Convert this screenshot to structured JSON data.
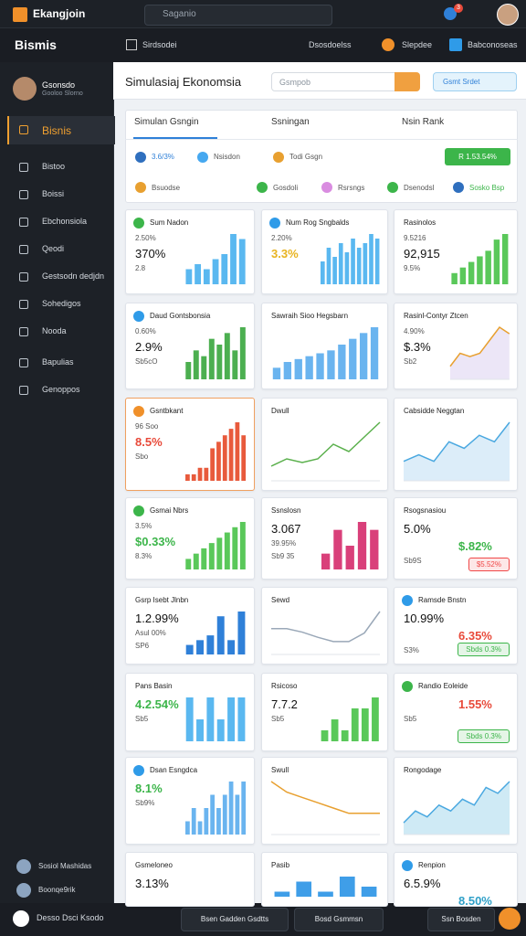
{
  "topbar": {
    "app_name": "Ekangjoin",
    "search": "Saganio",
    "notifications": "3"
  },
  "navbar": {
    "back": "Bismis",
    "items": [
      "Sirdsodei",
      "Dsosdoelss",
      "Slepdee",
      "Babconoseas"
    ]
  },
  "sidebar": {
    "profile": {
      "name": "Gsonsdo",
      "role": "Gooloo Slorno"
    },
    "items": [
      "Bisnis",
      "Bistoo",
      "Boissi",
      "Ebchonsiola",
      "Qeodi",
      "Gestsodn dedjdn",
      "Sohedigos",
      "Nooda",
      "Bapulias",
      "Genoppos"
    ],
    "footer": [
      "Sosiol Mashidas",
      "Boonqe9rik"
    ]
  },
  "header": {
    "title": "Simulasiaj Ekonomsia",
    "search": "Gsmpob",
    "button": "Gsmt Srdet"
  },
  "tabs": {
    "labels": [
      "Simulan Gsngin",
      "Ssningan",
      "Nsin Rank"
    ],
    "row1": [
      "3.6/3%",
      "Nsisdon",
      "Todi Gsgn"
    ],
    "action": "R 1.53.54%",
    "row2": [
      "Bsuodse",
      "Gosdoli",
      "Rsrsngs",
      "Dsenodsl",
      "Sosko Bsp"
    ]
  },
  "cards": [
    {
      "title": "Sum Nadon",
      "icon_color": "#3cb54a",
      "lines": [
        {
          "text": "2.50%",
          "style": "small"
        },
        {
          "text": "370%",
          "style": "big"
        },
        {
          "text": "2.8",
          "style": "small"
        }
      ],
      "chart": {
        "type": "bar",
        "color": "#5ab8f0",
        "values": [
          3,
          4,
          3,
          5,
          6,
          10,
          9
        ]
      }
    },
    {
      "title": "Num Rog Sngbalds",
      "icon_color": "#2f9be8",
      "lines": [
        {
          "text": "2.20%",
          "style": "small"
        },
        {
          "text": "3.3%",
          "style": "accent",
          "color": "#e8b320"
        }
      ],
      "chart": {
        "type": "bar",
        "color": "#5ab8f0",
        "values": [
          5,
          8,
          6,
          9,
          7,
          10,
          8,
          9,
          11,
          10
        ]
      }
    },
    {
      "title": "Rasinolos",
      "lines": [
        {
          "text": "9.5216",
          "style": "small"
        },
        {
          "text": "92,915",
          "style": "big"
        },
        {
          "text": "9.5%",
          "style": "small"
        }
      ],
      "chart": {
        "type": "bar",
        "color": "#5ac85a",
        "values": [
          2,
          3,
          4,
          5,
          6,
          8,
          9
        ]
      }
    },
    {
      "title": "Daud Gontsbonsia",
      "icon_color": "#2f9be8",
      "lines": [
        {
          "text": "0.60%",
          "style": "small"
        },
        {
          "text": "2.9%",
          "style": "big"
        },
        {
          "text": "Sb5cO",
          "style": "small"
        }
      ],
      "chart": {
        "type": "bar",
        "color": "#4caf50",
        "values": [
          3,
          5,
          4,
          7,
          6,
          8,
          5,
          9
        ]
      }
    },
    {
      "title": "Sawraih Sioo Hegsbarn",
      "lines": [],
      "chart": {
        "type": "bar",
        "color": "#6ab4ef",
        "values": [
          2,
          3,
          3.5,
          4,
          4.5,
          5,
          6,
          7,
          8,
          9
        ]
      }
    },
    {
      "title": "Rasinl-Contyr Ztcen",
      "lines": [
        {
          "text": "4.90%",
          "style": "small"
        },
        {
          "text": "$.3%",
          "style": "big"
        },
        {
          "text": "Sb2",
          "style": "small"
        }
      ],
      "chart": {
        "type": "line",
        "color": "#e8a030",
        "area": "#ece6f7",
        "values": [
          2,
          4,
          3.5,
          4,
          6,
          8,
          7
        ]
      }
    },
    {
      "title": "Gsntbkant",
      "icon_color": "#f0902a",
      "highlight": true,
      "lines": [
        {
          "text": "96 Soo",
          "style": "small"
        },
        {
          "text": "8.5%",
          "style": "accent",
          "color": "#e84a3a"
        },
        {
          "text": "Sbo",
          "style": "small"
        }
      ],
      "chart": {
        "type": "bar",
        "color": "#e85a3c",
        "values": [
          1,
          1,
          2,
          2,
          5,
          6,
          7,
          8,
          9,
          7
        ]
      }
    },
    {
      "title": "Dwull",
      "lines": [],
      "chart": {
        "type": "line",
        "color": "#5ab04c",
        "values": [
          2,
          3,
          2.5,
          3,
          5,
          4,
          6,
          8
        ]
      }
    },
    {
      "title": "Cabsidde Neggtan",
      "lines": [],
      "chart": {
        "type": "line",
        "color": "#4aa8e0",
        "area": "#dcedf9",
        "values": [
          3,
          4,
          3,
          6,
          5,
          7,
          6,
          9
        ]
      }
    },
    {
      "title": "Gsmai Nbrs",
      "icon_color": "#3cb54a",
      "lines": [
        {
          "text": "3.5%",
          "style": "small"
        },
        {
          "text": "$0.33%",
          "style": "accent",
          "color": "#3cb54a"
        },
        {
          "text": "8.3%",
          "style": "small"
        }
      ],
      "chart": {
        "type": "bar",
        "color": "#5ac85a",
        "values": [
          2,
          3,
          4,
          5,
          6,
          7,
          8,
          9
        ]
      }
    },
    {
      "title": "Ssnslosn",
      "lines": [
        {
          "text": "3.067",
          "style": "big"
        },
        {
          "text": "39.95%",
          "style": "small"
        },
        {
          "text": "Sb9 35",
          "style": "small"
        }
      ],
      "chart": {
        "type": "bar",
        "color": "#d9407a",
        "values": [
          2,
          5,
          3,
          6,
          5
        ]
      }
    },
    {
      "title": "Rsogsnasiou",
      "lines": [
        {
          "text": "5.0%",
          "style": "big"
        },
        {
          "text": "$.82%",
          "style": "accent",
          "color": "#3cb54a"
        },
        {
          "text": "Sb9S",
          "style": "small"
        },
        {
          "text": "$5.52%",
          "style": "badge",
          "color": "#f04848"
        }
      ]
    },
    {
      "title": "Gsrp Isebt Jlnbn",
      "lines": [
        {
          "text": "1.2.99%",
          "style": "big"
        },
        {
          "text": "Asul 00%",
          "style": "small"
        },
        {
          "text": "SP6",
          "style": "small"
        }
      ],
      "chart": {
        "type": "bar",
        "color": "#2f80d8",
        "values": [
          2,
          3,
          4,
          8,
          3,
          9
        ]
      }
    },
    {
      "title": "Sewd",
      "lines": [],
      "chart": {
        "type": "line",
        "color": "#9aa8b8",
        "values": [
          3,
          3,
          2.6,
          2,
          1.5,
          1.5,
          2.5,
          5
        ]
      }
    },
    {
      "title": "Ramsde Bnstn",
      "icon_color": "#2f9be8",
      "lines": [
        {
          "text": "10.99%",
          "style": "big"
        },
        {
          "text": "6.35%",
          "style": "accent",
          "color": "#e84a3a"
        },
        {
          "text": "S3%",
          "style": "small"
        },
        {
          "text": "Sbds 0.3%",
          "style": "badge",
          "color": "#3cb54a"
        }
      ]
    },
    {
      "title": "Pans Basin",
      "lines": [
        {
          "text": "4.2.54%",
          "style": "accent",
          "color": "#3cb54a"
        },
        {
          "text": "Sb5",
          "style": "small"
        }
      ],
      "chart": {
        "type": "bar",
        "color": "#5ab8f0",
        "values": [
          2,
          1,
          2,
          1,
          2,
          2
        ]
      }
    },
    {
      "title": "Rsicoso",
      "lines": [
        {
          "text": "7.7.2",
          "style": "big"
        },
        {
          "text": "Sb5",
          "style": "small"
        }
      ],
      "chart": {
        "type": "bar",
        "color": "#5ac85a",
        "values": [
          1,
          2,
          1,
          3,
          3,
          4
        ]
      }
    },
    {
      "title": "Randio Eoleide",
      "icon_color": "#3cb54a",
      "lines": [
        {
          "text": "1.55%",
          "style": "accent",
          "color": "#e84a3a"
        },
        {
          "text": "Sb5",
          "style": "small"
        },
        {
          "text": "Sbds 0.3%",
          "style": "badge",
          "color": "#3cb54a"
        }
      ]
    },
    {
      "title": "Dsan Esngdca",
      "icon_color": "#2f9be8",
      "lines": [
        {
          "text": "8.1%",
          "style": "accent",
          "color": "#3cb54a"
        },
        {
          "text": "Sb9%",
          "style": "small"
        }
      ],
      "chart": {
        "type": "bar",
        "color": "#6ab4ef",
        "values": [
          1,
          2,
          1,
          2,
          3,
          2,
          3,
          4,
          3,
          4
        ]
      }
    },
    {
      "title": "Swull",
      "lines": [],
      "chart": {
        "type": "line",
        "color": "#e8a030",
        "values": [
          5,
          4,
          3.5,
          3,
          2.5,
          2,
          2,
          2
        ]
      }
    },
    {
      "title": "Rongodage",
      "lines": [],
      "chart": {
        "type": "line",
        "color": "#4aa8e0",
        "area": "#cfeaf5",
        "values": [
          2,
          4,
          3,
          5,
          4,
          6,
          5,
          8,
          7,
          9
        ]
      }
    },
    {
      "title": "Gsmeloneo",
      "lines": [
        {
          "text": "3.13%",
          "style": "big"
        }
      ]
    },
    {
      "title": "Pasib",
      "lines": [],
      "chart": {
        "type": "bar",
        "color": "#3f9ee8",
        "values": [
          1,
          3,
          1,
          4,
          2
        ]
      }
    },
    {
      "title": "Renpion",
      "icon_color": "#2f9be8",
      "lines": [
        {
          "text": "6.5.9%",
          "style": "big"
        },
        {
          "text": "8.50%",
          "style": "accent",
          "color": "#2fa0c8"
        }
      ]
    }
  ],
  "bottombar": {
    "left": "Desso Dsci Ksodo",
    "buttons": [
      "Bsen Gadden Gsdtts",
      "Bosd Gsmmsn",
      "Ssn Bosden"
    ]
  }
}
